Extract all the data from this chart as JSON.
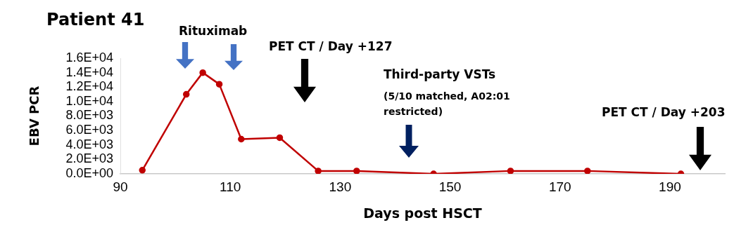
{
  "chart_data": {
    "type": "line",
    "title": "Patient 41",
    "xlabel": "Days post HSCT",
    "ylabel": "EBV PCR",
    "x": [
      94,
      102,
      105,
      108,
      112,
      119,
      126,
      133,
      147,
      161,
      175,
      192
    ],
    "series": [
      {
        "color": "#c00000",
        "values": [
          500,
          11000,
          14000,
          12400,
          4800,
          5000,
          400,
          400,
          0,
          400,
          400,
          0
        ]
      }
    ],
    "xlim": [
      90,
      200
    ],
    "xticks": [
      90,
      110,
      130,
      150,
      170,
      190
    ],
    "ylim": [
      0,
      16000
    ],
    "yticks": [
      {
        "value": 0,
        "label": "0.0E+00"
      },
      {
        "value": 2000,
        "label": "2.0E+03"
      },
      {
        "value": 4000,
        "label": "4.0E+03"
      },
      {
        "value": 6000,
        "label": "6.0E+03"
      },
      {
        "value": 8000,
        "label": "8.0E+03"
      },
      {
        "value": 10000,
        "label": "1.0E+04"
      },
      {
        "value": 12000,
        "label": "1.2E+04"
      },
      {
        "value": 14000,
        "label": "1.4E+04"
      },
      {
        "value": 16000,
        "label": "1.6E+04"
      }
    ],
    "annotations": [
      "Rituximab",
      "PET CT / Day +127",
      "Third-party VSTs",
      "(5/10 matched, A02:01 restricted)",
      "PET CT / Day +203"
    ],
    "grid": false,
    "legend": false,
    "marker": "circle",
    "line_style": "solid"
  }
}
